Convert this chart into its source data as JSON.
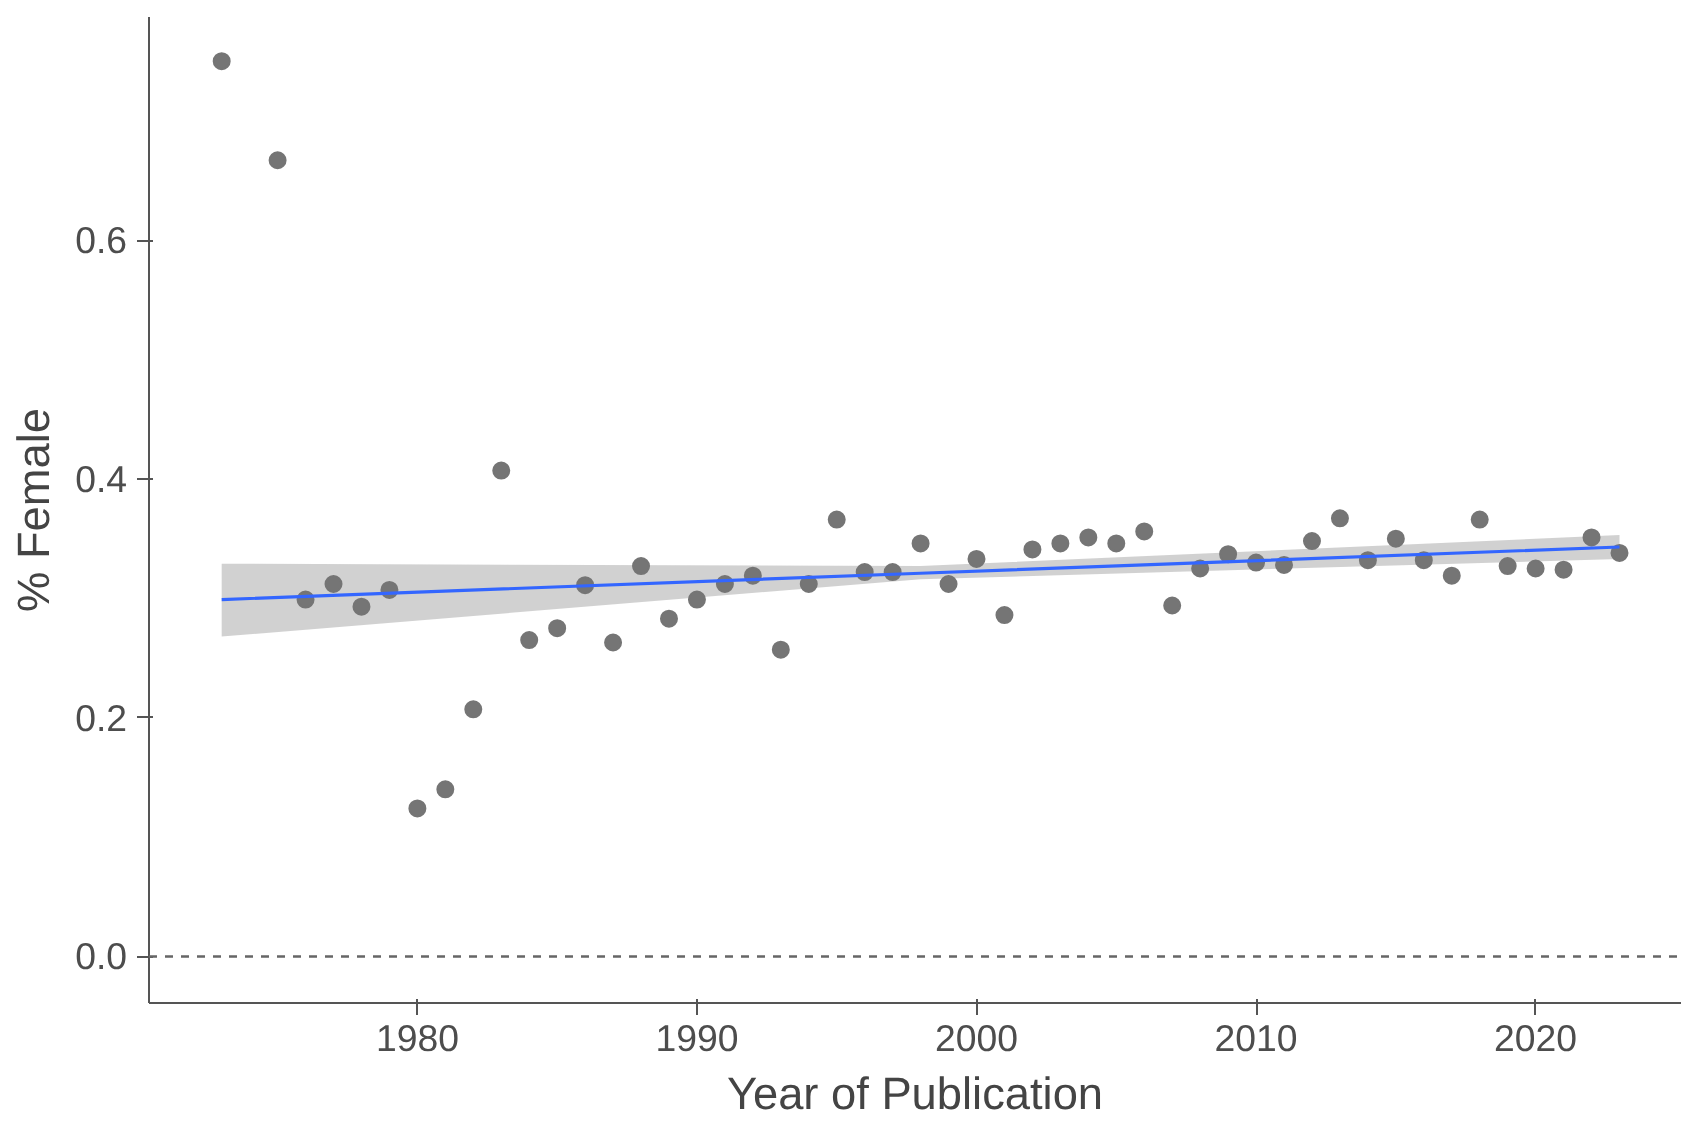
{
  "chart_data": {
    "type": "scatter",
    "xlabel": "Year of Publication",
    "ylabel": "% Female",
    "xlim": [
      1970.4,
      2025.2
    ],
    "ylim": [
      -0.039,
      0.787
    ],
    "xticks": [
      1980,
      1990,
      2000,
      2010,
      2020
    ],
    "yticks": [
      {
        "value": 0,
        "label": "0.0"
      },
      {
        "value": 0.2,
        "label": "0.2"
      },
      {
        "value": 0.4,
        "label": "0.4"
      },
      {
        "value": 0.6,
        "label": "0.6"
      }
    ],
    "grid": false,
    "ref_lines": [
      {
        "axis": "y",
        "value": 0,
        "color": "#666666",
        "line_style": "dashed"
      }
    ],
    "series": [
      {
        "marker": "circle",
        "color": "#757575",
        "x": [
          1973,
          1975,
          1976,
          1977,
          1978,
          1979,
          1980,
          1981,
          1982,
          1983,
          1984,
          1985,
          1986,
          1987,
          1988,
          1989,
          1990,
          1991,
          1992,
          1993,
          1994,
          1995,
          1996,
          1997,
          1998,
          1999,
          2000,
          2001,
          2002,
          2003,
          2004,
          2005,
          2006,
          2007,
          2008,
          2009,
          2010,
          2011,
          2012,
          2013,
          2014,
          2015,
          2016,
          2017,
          2018,
          2019,
          2020,
          2021,
          2022,
          2023
        ],
        "values": [
          0.75,
          0.667,
          0.299,
          0.312,
          0.293,
          0.307,
          0.124,
          0.14,
          0.207,
          0.407,
          0.265,
          0.275,
          0.311,
          0.263,
          0.327,
          0.283,
          0.299,
          0.312,
          0.319,
          0.257,
          0.312,
          0.366,
          0.322,
          0.322,
          0.346,
          0.312,
          0.333,
          0.286,
          0.341,
          0.346,
          0.351,
          0.346,
          0.356,
          0.294,
          0.325,
          0.337,
          0.33,
          0.328,
          0.348,
          0.367,
          0.332,
          0.35,
          0.332,
          0.319,
          0.366,
          0.327,
          0.325,
          0.324,
          0.351,
          0.338
        ]
      },
      {
        "type": "line",
        "marker": "none",
        "color": "#3366ff",
        "x": [
          1973,
          1998,
          2023
        ],
        "values": [
          0.299,
          0.321,
          0.343
        ],
        "lower": [
          0.268,
          0.316,
          0.333
        ],
        "upper": [
          0.329,
          0.327,
          0.353
        ]
      }
    ]
  }
}
